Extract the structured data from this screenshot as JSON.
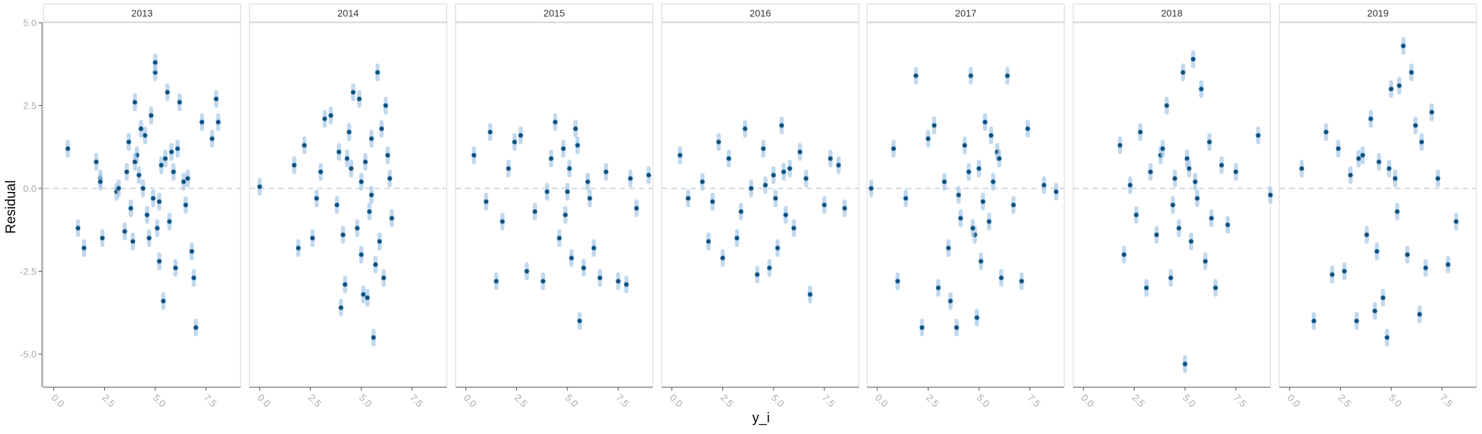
{
  "chart_data": {
    "type": "scatter",
    "title": "",
    "xlabel": "y_i",
    "ylabel": "Residual",
    "facets": [
      "2013",
      "2014",
      "2015",
      "2016",
      "2017",
      "2018",
      "2019"
    ],
    "xlim": [
      -0.5,
      9.2
    ],
    "ylim": [
      -6.0,
      5.0
    ],
    "xticks": [
      0.0,
      2.5,
      5.0,
      7.5
    ],
    "xtick_labels": [
      "0.0",
      "2.5",
      "5.0",
      "7.5"
    ],
    "yticks": [
      -5.0,
      -2.5,
      0.0,
      2.5,
      5.0
    ],
    "ytick_labels": [
      "-5.0",
      "-2.5",
      "0.0",
      "2.5",
      "5.0"
    ],
    "reference_line": 0,
    "grid": false,
    "legend": "none",
    "colors": {
      "point_fill": "#0b4f7c",
      "point_edge": "#7aaad1",
      "interval": "#a8c8e8",
      "ref_line": "#cfd8e0",
      "strip_text": "#333333",
      "tick_text": "#aaaaaa",
      "axis_line": "#444444"
    },
    "series": [
      {
        "name": "2013",
        "x": [
          0.7,
          1.2,
          1.5,
          2.1,
          2.3,
          2.4,
          2.3,
          3.1,
          3.2,
          3.5,
          3.6,
          3.7,
          3.9,
          4.0,
          4.1,
          4.4,
          4.6,
          4.8,
          5.0,
          5.0,
          5.2,
          5.4,
          5.6,
          5.9,
          6.2,
          6.5,
          6.8,
          6.9,
          7.0,
          7.3,
          7.8,
          8.0,
          8.1,
          4.2,
          4.5,
          4.9,
          5.3,
          5.7,
          6.1,
          6.4,
          3.8,
          4.3,
          5.1,
          5.5,
          6.0,
          6.6,
          4.7,
          5.8,
          4.0,
          5.2
        ],
        "y": [
          1.2,
          -1.2,
          -1.8,
          0.8,
          0.3,
          -1.5,
          0.2,
          -0.1,
          0.0,
          -1.3,
          0.5,
          1.4,
          -1.6,
          2.6,
          1.0,
          0.0,
          -0.8,
          2.2,
          3.5,
          3.8,
          -2.2,
          -3.4,
          2.9,
          0.5,
          2.6,
          -0.5,
          -1.9,
          -2.7,
          -4.2,
          2.0,
          1.5,
          2.7,
          2.0,
          0.4,
          1.6,
          -0.3,
          0.7,
          -1.0,
          1.2,
          0.2,
          -0.6,
          1.8,
          -1.2,
          0.9,
          -2.4,
          0.3,
          -1.5,
          1.1,
          0.8,
          -0.4
        ]
      },
      {
        "name": "2014",
        "x": [
          0.0,
          1.7,
          1.9,
          2.2,
          2.6,
          3.0,
          3.2,
          3.5,
          3.8,
          4.0,
          4.2,
          4.4,
          4.6,
          4.8,
          4.9,
          5.0,
          5.1,
          5.2,
          5.3,
          5.4,
          5.5,
          5.6,
          5.8,
          6.0,
          6.1,
          6.2,
          6.4,
          6.5,
          5.0,
          4.1,
          3.9,
          5.7,
          6.3,
          4.5,
          2.8,
          5.9,
          4.3,
          5.5
        ],
        "y": [
          0.05,
          0.7,
          -1.8,
          1.3,
          -1.5,
          0.5,
          2.1,
          2.2,
          -0.5,
          -3.6,
          -2.9,
          1.7,
          2.9,
          -1.2,
          2.7,
          0.2,
          -3.2,
          0.8,
          -3.3,
          -0.7,
          1.5,
          -4.5,
          3.5,
          1.8,
          -2.7,
          2.5,
          0.3,
          -0.9,
          -2.0,
          -1.4,
          1.1,
          -2.3,
          1.0,
          0.6,
          -0.3,
          -1.6,
          0.9,
          -0.2
        ]
      },
      {
        "name": "2015",
        "x": [
          0.4,
          1.0,
          1.2,
          1.5,
          1.8,
          2.1,
          2.4,
          2.7,
          3.0,
          3.4,
          3.8,
          4.2,
          4.4,
          4.6,
          4.8,
          5.0,
          5.2,
          5.4,
          5.6,
          5.8,
          6.0,
          6.3,
          6.6,
          6.9,
          7.5,
          7.9,
          8.1,
          8.4,
          9.0,
          5.1,
          4.9,
          5.5,
          6.1,
          4.0
        ],
        "y": [
          1.0,
          -0.4,
          1.7,
          -2.8,
          -1.0,
          0.6,
          1.4,
          1.6,
          -2.5,
          -0.7,
          -2.8,
          0.9,
          2.0,
          -1.5,
          1.2,
          -0.1,
          -2.1,
          1.8,
          -4.0,
          -2.4,
          0.2,
          -1.8,
          -2.7,
          0.5,
          -2.8,
          -2.9,
          0.3,
          -0.6,
          0.4,
          0.6,
          -0.8,
          1.3,
          -0.3,
          -0.1
        ]
      },
      {
        "name": "2016",
        "x": [
          0.4,
          0.8,
          1.5,
          1.8,
          2.0,
          2.3,
          2.5,
          2.8,
          3.2,
          3.6,
          3.9,
          4.2,
          4.5,
          4.8,
          5.0,
          5.2,
          5.4,
          5.6,
          5.8,
          6.0,
          6.3,
          6.6,
          6.8,
          7.5,
          7.8,
          8.2,
          8.5,
          4.6,
          5.1,
          5.5,
          3.4
        ],
        "y": [
          1.0,
          -0.3,
          0.2,
          -1.6,
          -0.4,
          1.4,
          -2.1,
          0.9,
          -1.5,
          1.8,
          0.0,
          -2.6,
          1.2,
          -2.4,
          0.4,
          -1.8,
          1.9,
          -0.8,
          0.6,
          -1.2,
          1.1,
          0.3,
          -3.2,
          -0.5,
          0.9,
          0.7,
          -0.6,
          0.1,
          -0.3,
          0.5,
          -0.7
        ]
      },
      {
        "name": "2017",
        "x": [
          -0.3,
          0.8,
          1.0,
          1.4,
          1.9,
          2.2,
          2.5,
          2.8,
          3.0,
          3.3,
          3.6,
          3.9,
          4.1,
          4.3,
          4.6,
          4.8,
          4.9,
          5.0,
          5.1,
          5.3,
          5.5,
          5.7,
          5.9,
          6.1,
          6.4,
          6.7,
          7.1,
          7.4,
          8.2,
          8.8,
          4.5,
          5.2,
          3.5,
          6.0,
          4.0,
          5.6,
          4.7
        ],
        "y": [
          0.0,
          1.2,
          -2.8,
          -0.3,
          3.4,
          -4.2,
          1.5,
          1.9,
          -3.0,
          0.2,
          -3.4,
          -4.2,
          -0.9,
          1.3,
          3.4,
          -1.4,
          -3.9,
          0.6,
          -2.2,
          2.0,
          -1.0,
          0.2,
          1.1,
          -2.7,
          3.4,
          -0.5,
          -2.8,
          1.8,
          0.1,
          -0.1,
          0.5,
          -0.4,
          -1.8,
          0.9,
          -0.2,
          1.6,
          -1.2
        ]
      },
      {
        "name": "2018",
        "x": [
          1.8,
          2.0,
          2.3,
          2.6,
          2.8,
          3.1,
          3.3,
          3.6,
          3.8,
          4.1,
          4.3,
          4.5,
          4.7,
          4.9,
          5.0,
          5.1,
          5.3,
          5.4,
          5.6,
          5.8,
          6.0,
          6.2,
          6.5,
          6.8,
          7.1,
          7.5,
          8.6,
          9.2,
          4.4,
          5.5,
          3.9,
          6.3,
          5.2
        ],
        "y": [
          1.3,
          -2.0,
          0.1,
          -0.8,
          1.7,
          -3.0,
          0.5,
          -1.4,
          1.0,
          2.5,
          -2.7,
          0.3,
          -1.2,
          3.5,
          -5.3,
          0.9,
          -1.6,
          3.9,
          -0.3,
          3.0,
          -2.2,
          1.4,
          -3.0,
          0.7,
          -1.1,
          0.5,
          1.6,
          -0.2,
          -0.5,
          0.2,
          1.2,
          -0.9,
          0.6
        ]
      },
      {
        "name": "2019",
        "x": [
          0.6,
          1.2,
          1.8,
          2.1,
          2.4,
          2.7,
          3.0,
          3.3,
          3.6,
          3.8,
          4.0,
          4.2,
          4.4,
          4.6,
          4.8,
          5.0,
          5.2,
          5.4,
          5.6,
          5.8,
          6.0,
          6.2,
          6.4,
          6.7,
          7.0,
          7.3,
          7.8,
          8.2,
          4.9,
          5.3,
          3.4,
          6.5,
          4.3
        ],
        "y": [
          0.6,
          -4.0,
          1.7,
          -2.6,
          1.2,
          -2.5,
          0.4,
          -4.0,
          1.0,
          -1.4,
          2.1,
          -3.7,
          0.8,
          -3.3,
          -4.5,
          3.0,
          0.3,
          3.1,
          4.3,
          -2.0,
          3.5,
          1.9,
          -3.8,
          -2.4,
          2.3,
          0.3,
          -2.3,
          -1.0,
          0.6,
          -0.7,
          0.9,
          1.4,
          -1.9
        ]
      }
    ]
  }
}
